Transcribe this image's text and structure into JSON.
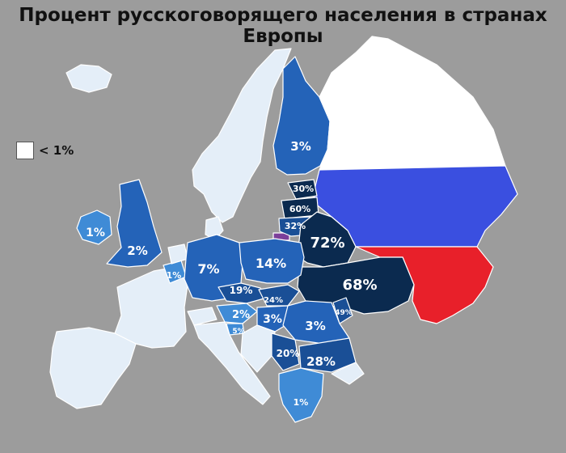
{
  "title": "Процент русскоговорящего населения в странах Европы",
  "legend": {
    "label": "< 1%",
    "color": "#ffffff"
  },
  "colors": {
    "background": "#9c9c9c",
    "low": "#e4eef8",
    "light_blue": "#3f8bd6",
    "mid_blue": "#2463b8",
    "dark_blue": "#1a4f96",
    "navy": "#0b2a4f",
    "flag_white": "#ffffff",
    "flag_blue": "#3a4fe0",
    "flag_red": "#e8202a"
  },
  "labels": {
    "finland": "3%",
    "estonia": "30%",
    "latvia": "60%",
    "lithuania": "32%",
    "belarus": "72%",
    "ukraine": "68%",
    "ireland": "1%",
    "uk": "2%",
    "belgium": "1%",
    "germany": "7%",
    "poland": "14%",
    "czechia": "19%",
    "slovakia": "24%",
    "austria": "2%",
    "hungary": "3%",
    "slovenia": "5%",
    "moldova": "49%",
    "romania": "3%",
    "serbia": "20%",
    "bulgaria": "28%",
    "greece": "1%"
  }
}
